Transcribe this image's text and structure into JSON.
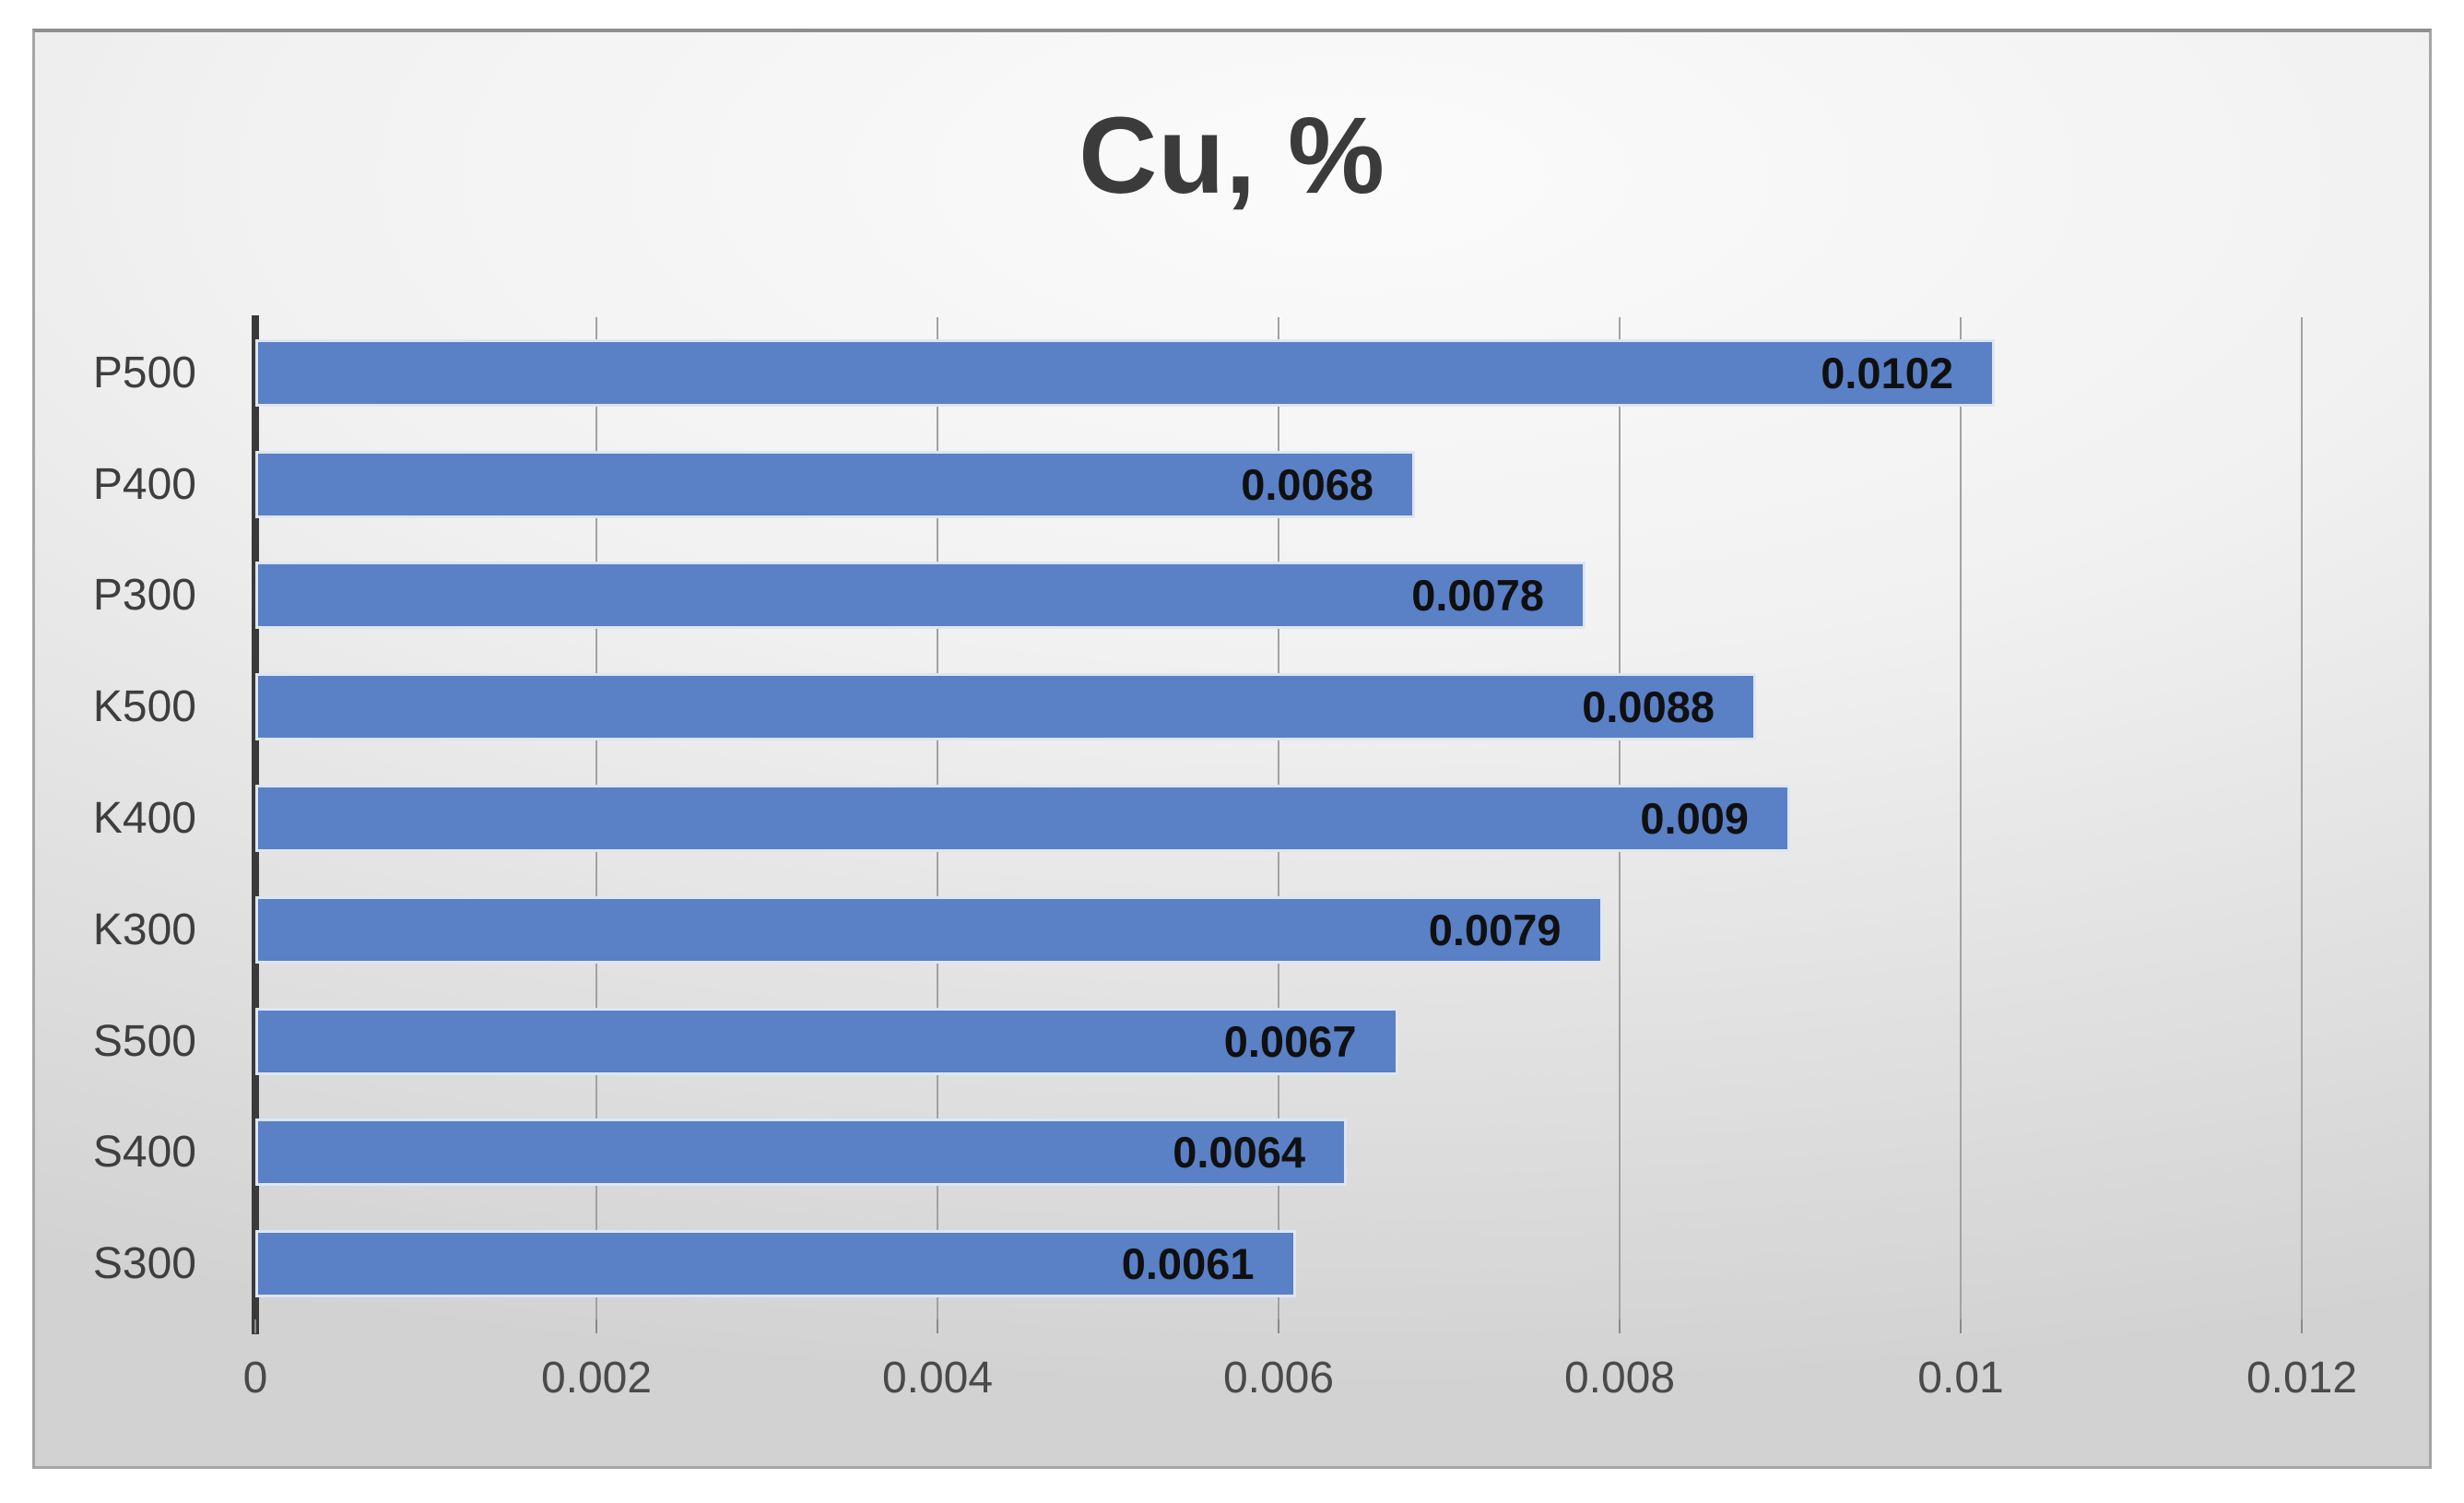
{
  "chart_data": {
    "type": "bar",
    "orientation": "horizontal",
    "title": "Cu, %",
    "categories": [
      "P500",
      "P400",
      "P300",
      "K500",
      "K400",
      "K300",
      "S500",
      "S400",
      "S300"
    ],
    "values": [
      0.0102,
      0.0068,
      0.0078,
      0.0088,
      0.009,
      0.0079,
      0.0067,
      0.0064,
      0.0061
    ],
    "value_labels": [
      "0.0102",
      "0.0068",
      "0.0078",
      "0.0088",
      "0.009",
      "0.0079",
      "0.0067",
      "0.0064",
      "0.0061"
    ],
    "xlabel": "",
    "ylabel": "",
    "xlim": [
      0,
      0.01234
    ],
    "xticks": [
      0,
      0.002,
      0.004,
      0.006,
      0.008,
      0.01,
      0.012
    ],
    "xtick_labels": [
      "0",
      "0.002",
      "0.004",
      "0.006",
      "0.008",
      "0.01",
      "0.012"
    ],
    "grid": true,
    "legend": false,
    "data_label_position": "inside-end"
  },
  "colors": {
    "bar_fill": "#5a80c6",
    "bar_edge": "#e9eef9",
    "axis_line": "#3a3a3a",
    "gridline": "#a2a2a2",
    "title_text": "#3b3b3b",
    "tick_text": "#4a4a4a",
    "category_text": "#3e3e3e",
    "value_text": "#101010",
    "panel_border": "#a6a6a6",
    "background_outer": "#ffffff"
  }
}
